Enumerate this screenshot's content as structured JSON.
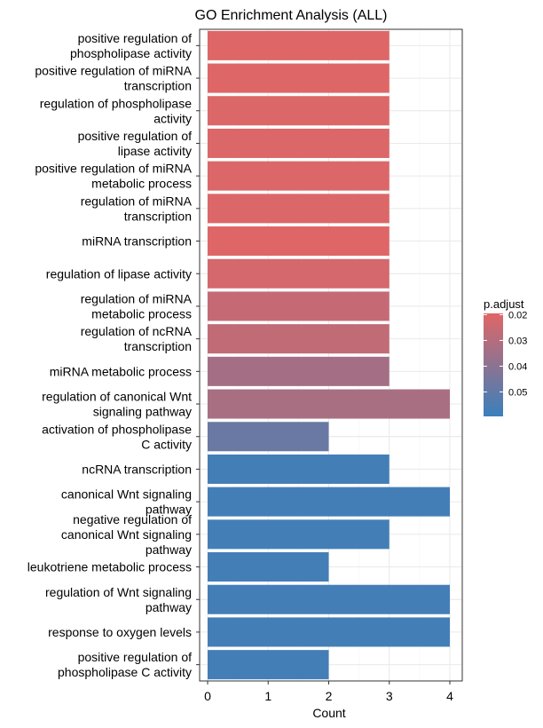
{
  "chart_data": {
    "type": "bar",
    "orientation": "horizontal",
    "title": "GO Enrichment Analysis (ALL)",
    "xlabel": "Count",
    "ylabel": "",
    "xlim": [
      0,
      4.2
    ],
    "xticks": [
      0,
      1,
      2,
      3,
      4
    ],
    "grid": true,
    "categories": [
      "positive regulation of\nphospholipase activity",
      "positive regulation of miRNA\ntranscription",
      "regulation of phospholipase\nactivity",
      "positive regulation of\nlipase activity",
      "positive regulation of miRNA\nmetabolic process",
      "regulation of miRNA\ntranscription",
      "miRNA transcription",
      "regulation of lipase activity",
      "regulation of miRNA\nmetabolic process",
      "regulation of ncRNA\ntranscription",
      "miRNA metabolic process",
      "regulation of canonical Wnt\nsignaling pathway",
      "activation of phospholipase\nC activity",
      "ncRNA transcription",
      "canonical Wnt signaling\npathway",
      "negative regulation of\ncanonical Wnt signaling\npathway",
      "leukotriene metabolic process",
      "regulation of Wnt signaling\npathway",
      "response to oxygen levels",
      "positive regulation of\nphospholipase C activity"
    ],
    "values": [
      3,
      3,
      3,
      3,
      3,
      3,
      3,
      3,
      3,
      3,
      3,
      4,
      2,
      3,
      4,
      3,
      2,
      4,
      4,
      2
    ],
    "p_adjust": [
      0.02,
      0.02,
      0.0205,
      0.0205,
      0.0205,
      0.0205,
      0.02,
      0.0225,
      0.026,
      0.027,
      0.034,
      0.033,
      0.048,
      0.057,
      0.057,
      0.057,
      0.057,
      0.057,
      0.057,
      0.057
    ],
    "legend": {
      "title": "p.adjust",
      "position": "right",
      "ticks": [
        "0.02",
        "0.03",
        "0.04",
        "0.05"
      ],
      "tick_values": [
        0.02,
        0.03,
        0.04,
        0.05
      ],
      "range": [
        0.0195,
        0.0595
      ],
      "color_low": "#E06666",
      "color_high": "#3A80BC"
    }
  }
}
